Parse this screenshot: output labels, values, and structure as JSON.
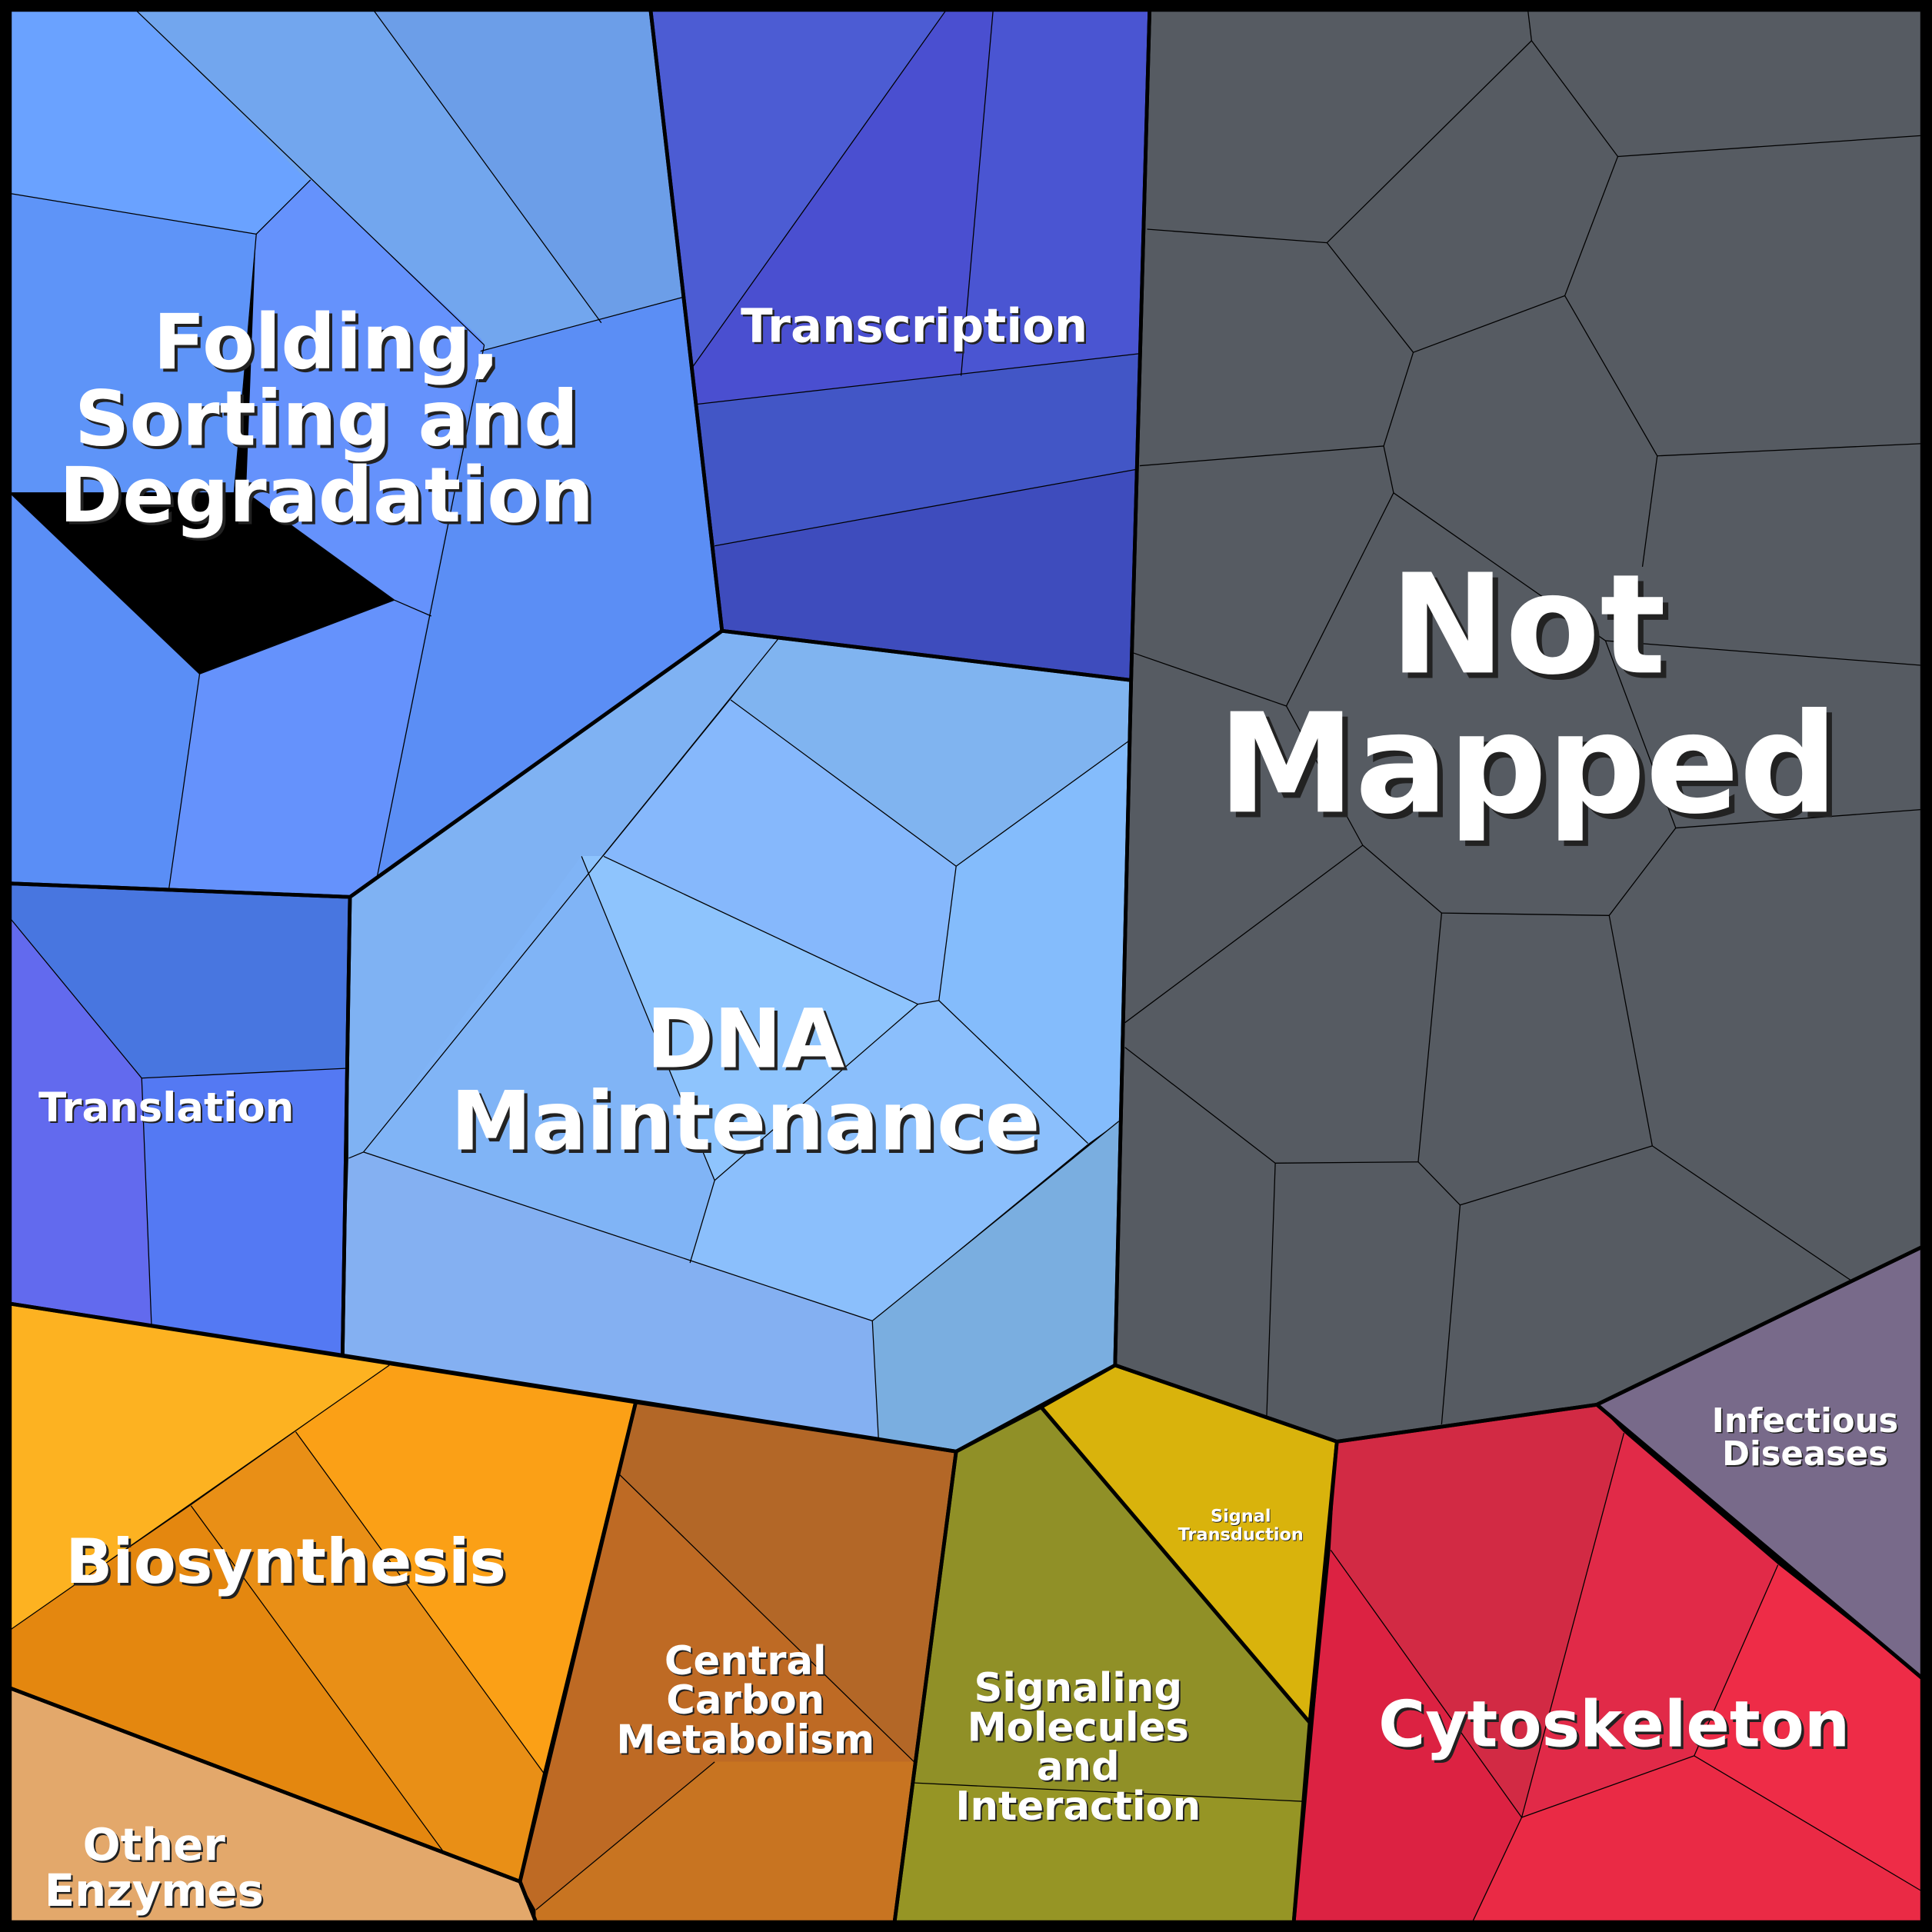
{
  "regions": [
    {
      "lines": [
        "Folding,",
        "Sorting and",
        "Degradation"
      ]
    },
    {
      "lines": [
        "Transcription"
      ]
    },
    {
      "lines": [
        "Not",
        "Mapped"
      ]
    },
    {
      "lines": [
        "DNA",
        "Maintenance"
      ]
    },
    {
      "lines": [
        "Translation"
      ]
    },
    {
      "lines": [
        "Biosynthesis"
      ]
    },
    {
      "lines": [
        "Other",
        "Enzymes"
      ]
    },
    {
      "lines": [
        "Central",
        "Carbon",
        "Metabolism"
      ]
    },
    {
      "lines": [
        "Signaling",
        "Molecules",
        "and",
        "Interaction"
      ]
    },
    {
      "lines": [
        "Signal",
        "Transduction"
      ]
    },
    {
      "lines": [
        "Cytoskeleton"
      ]
    },
    {
      "lines": [
        "Infectious",
        "Diseases"
      ]
    }
  ]
}
